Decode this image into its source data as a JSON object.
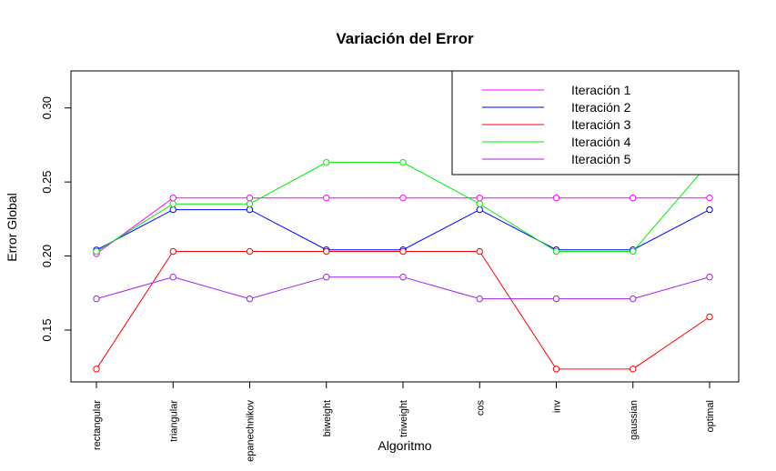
{
  "chart_data": {
    "type": "line",
    "title": "Variación del Error",
    "xlabel": "Algoritmo",
    "ylabel": "Error Global",
    "categories": [
      "rectangular",
      "triangular",
      "epanechnikov",
      "biweight",
      "triweight",
      "cos",
      "inv",
      "gaussian",
      "optimal"
    ],
    "ylim": [
      0.115,
      0.325
    ],
    "yticks": [
      "0.15",
      "0.20",
      "0.25",
      "0.30"
    ],
    "legend_position": "top-right",
    "grid": false,
    "series": [
      {
        "name": "Iteración 1",
        "color": "#ff00ff",
        "values": [
          0.2016,
          0.2392,
          0.2392,
          0.2392,
          0.2392,
          0.2392,
          0.2392,
          0.2392,
          0.2392
        ]
      },
      {
        "name": "Iteración 2",
        "color": "#0000ff",
        "values": [
          0.2041,
          0.2313,
          0.2313,
          0.2042,
          0.2042,
          0.2313,
          0.2042,
          0.2042,
          0.2313
        ]
      },
      {
        "name": "Iteración 3",
        "color": "#ff0000",
        "values": [
          0.1237,
          0.2031,
          0.2031,
          0.2031,
          0.2031,
          0.2031,
          0.1237,
          0.1237,
          0.1589
        ]
      },
      {
        "name": "Iteración 4",
        "color": "#00ee00",
        "values": [
          0.2031,
          0.2352,
          0.2352,
          0.2632,
          0.2632,
          0.2352,
          0.2031,
          0.2031,
          0.2632
        ]
      },
      {
        "name": "Iteración 5",
        "color": "#a020f0",
        "values": [
          0.1711,
          0.1858,
          0.1711,
          0.1858,
          0.1858,
          0.1711,
          0.1711,
          0.1711,
          0.1858
        ]
      }
    ]
  }
}
